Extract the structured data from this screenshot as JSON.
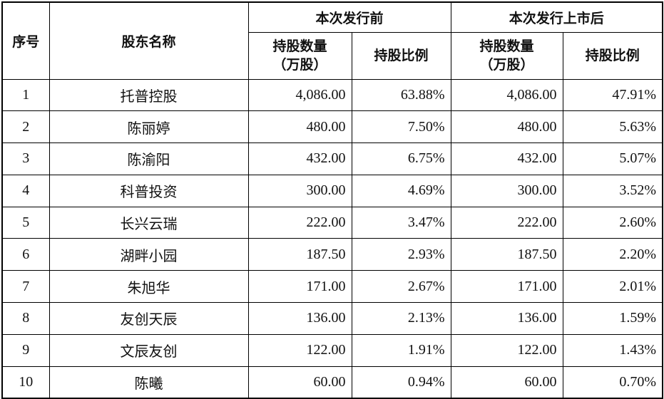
{
  "header": {
    "seq": "序号",
    "shareholder": "股东名称",
    "before_group": "本次发行前",
    "after_group": "本次发行上市后",
    "shares_line1": "持股数量",
    "shares_line2": "（万股）",
    "ratio": "持股比例"
  },
  "rows": [
    {
      "seq": "1",
      "name": "托普控股",
      "before_shares": "4,086.00",
      "before_ratio": "63.88%",
      "after_shares": "4,086.00",
      "after_ratio": "47.91%"
    },
    {
      "seq": "2",
      "name": "陈丽婷",
      "before_shares": "480.00",
      "before_ratio": "7.50%",
      "after_shares": "480.00",
      "after_ratio": "5.63%"
    },
    {
      "seq": "3",
      "name": "陈渝阳",
      "before_shares": "432.00",
      "before_ratio": "6.75%",
      "after_shares": "432.00",
      "after_ratio": "5.07%"
    },
    {
      "seq": "4",
      "name": "科普投资",
      "before_shares": "300.00",
      "before_ratio": "4.69%",
      "after_shares": "300.00",
      "after_ratio": "3.52%"
    },
    {
      "seq": "5",
      "name": "长兴云瑞",
      "before_shares": "222.00",
      "before_ratio": "3.47%",
      "after_shares": "222.00",
      "after_ratio": "2.60%"
    },
    {
      "seq": "6",
      "name": "湖畔小园",
      "before_shares": "187.50",
      "before_ratio": "2.93%",
      "after_shares": "187.50",
      "after_ratio": "2.20%"
    },
    {
      "seq": "7",
      "name": "朱旭华",
      "before_shares": "171.00",
      "before_ratio": "2.67%",
      "after_shares": "171.00",
      "after_ratio": "2.01%"
    },
    {
      "seq": "8",
      "name": "友创天辰",
      "before_shares": "136.00",
      "before_ratio": "2.13%",
      "after_shares": "136.00",
      "after_ratio": "1.59%"
    },
    {
      "seq": "9",
      "name": "文辰友创",
      "before_shares": "122.00",
      "before_ratio": "1.91%",
      "after_shares": "122.00",
      "after_ratio": "1.43%"
    },
    {
      "seq": "10",
      "name": "陈曦",
      "before_shares": "60.00",
      "before_ratio": "0.94%",
      "after_shares": "60.00",
      "after_ratio": "0.70%"
    }
  ]
}
